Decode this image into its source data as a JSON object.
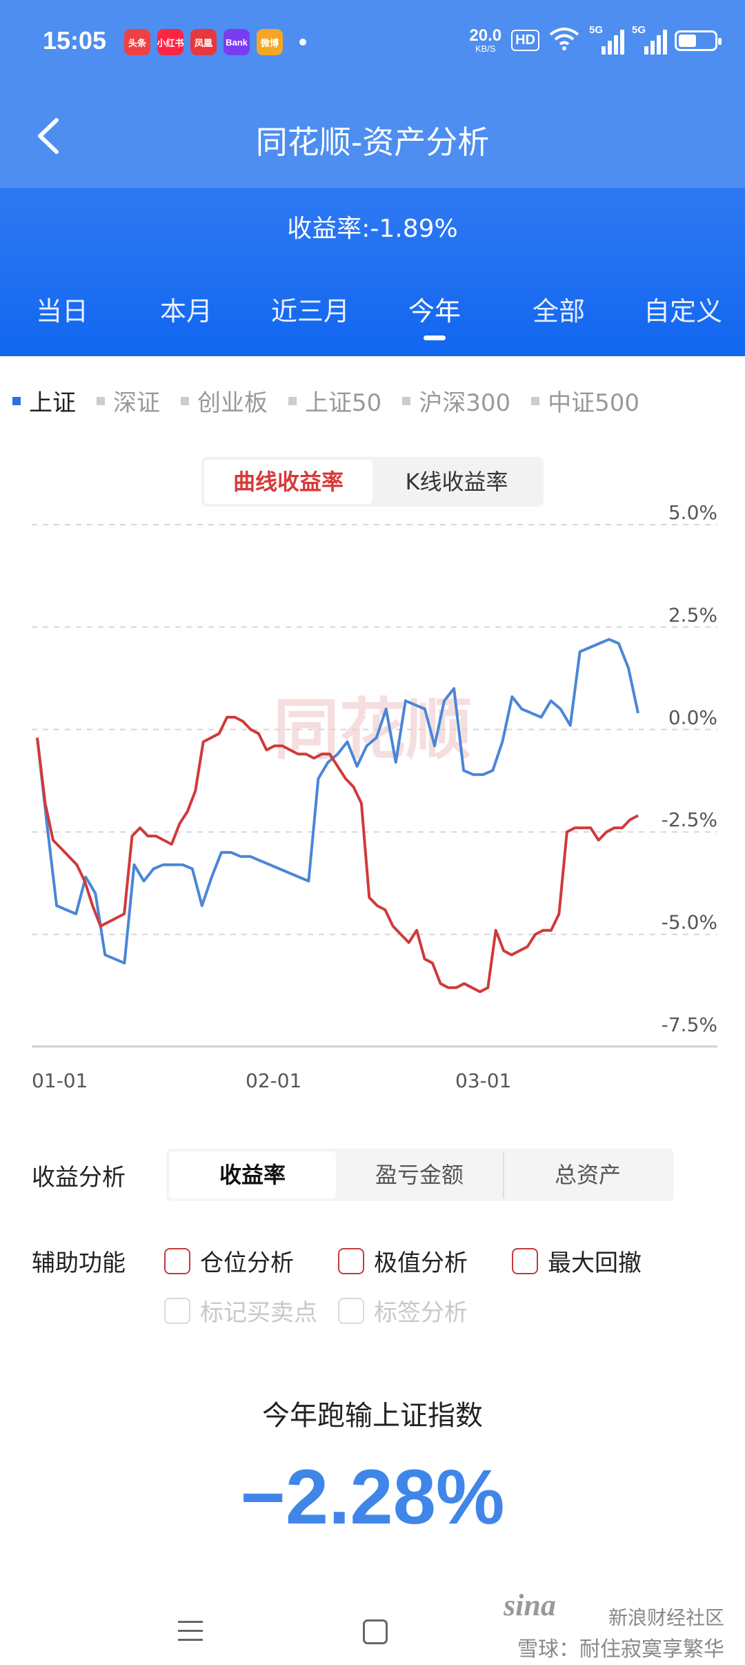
{
  "status": {
    "time": "15:05",
    "apps": [
      {
        "name": "toutiao-icon",
        "label": "头条",
        "color": "#f04142"
      },
      {
        "name": "xiaohongshu-icon",
        "label": "小红书",
        "color": "#ff2442"
      },
      {
        "name": "news-icon",
        "label": "凤凰",
        "color": "#e8383d"
      },
      {
        "name": "bank-icon",
        "label": "Bank",
        "color": "#7a3cf0"
      },
      {
        "name": "weibo-icon",
        "label": "微博",
        "color": "#f6a623"
      }
    ],
    "net_speed": "20.0",
    "net_unit": "KB/S",
    "hd": "HD",
    "sig1": "5G",
    "sig2": "5G"
  },
  "header": {
    "title": "同花顺-资产分析",
    "return_rate": "收益率:-1.89%"
  },
  "tabs": [
    "当日",
    "本月",
    "近三月",
    "今年",
    "全部",
    "自定义"
  ],
  "active_tab": 3,
  "indices": [
    "上证",
    "深证",
    "创业板",
    "上证50",
    "沪深300",
    "中证500"
  ],
  "active_index": 0,
  "chart_toggle": {
    "curve": "曲线收益率",
    "kline": "K线收益率"
  },
  "chart_data": {
    "type": "line",
    "x_tick_labels": [
      "01-01",
      "02-01",
      "03-01"
    ],
    "y_tick_labels": [
      "5.0%",
      "2.5%",
      "0.0%",
      "-2.5%",
      "-5.0%",
      "-7.5%"
    ],
    "ylim": [
      -7.5,
      5.0
    ],
    "grid": true,
    "watermark": "同花顺",
    "series": [
      {
        "color": "#4a86d8",
        "values": [
          -0.2,
          -2.3,
          -4.3,
          -4.4,
          -4.5,
          -3.6,
          -4.0,
          -5.5,
          -5.6,
          -5.7,
          -3.3,
          -3.7,
          -3.4,
          -3.3,
          -3.3,
          -3.3,
          -3.4,
          -4.3,
          -3.6,
          -3.0,
          -3.0,
          -3.1,
          -3.1,
          -3.2,
          -3.3,
          -3.4,
          -3.5,
          -3.6,
          -3.7,
          -1.2,
          -0.8,
          -0.6,
          -0.3,
          -0.9,
          -0.4,
          -0.2,
          0.5,
          -0.8,
          0.7,
          0.6,
          0.5,
          -0.4,
          0.7,
          1.0,
          -1.0,
          -1.1,
          -1.1,
          -1.0,
          -0.3,
          0.8,
          0.5,
          0.4,
          0.3,
          0.7,
          0.5,
          0.1,
          1.9,
          2.0,
          2.1,
          2.2,
          2.1,
          1.5,
          0.4
        ]
      },
      {
        "color": "#d03a3a",
        "values": [
          -0.2,
          -1.8,
          -2.7,
          -2.9,
          -3.1,
          -3.3,
          -3.7,
          -4.3,
          -4.8,
          -4.7,
          -4.6,
          -4.5,
          -2.6,
          -2.4,
          -2.6,
          -2.6,
          -2.7,
          -2.8,
          -2.3,
          -2.0,
          -1.5,
          -0.3,
          -0.2,
          -0.1,
          0.3,
          0.3,
          0.2,
          0.0,
          -0.1,
          -0.5,
          -0.4,
          -0.4,
          -0.5,
          -0.6,
          -0.6,
          -0.7,
          -0.6,
          -0.6,
          -0.9,
          -1.2,
          -1.4,
          -1.8,
          -4.1,
          -4.3,
          -4.4,
          -4.8,
          -5.0,
          -5.2,
          -4.9,
          -5.6,
          -5.7,
          -6.2,
          -6.3,
          -6.3,
          -6.2,
          -6.3,
          -6.4,
          -6.3,
          -4.9,
          -5.4,
          -5.5,
          -5.4,
          -5.3,
          -5.0,
          -4.9,
          -4.9,
          -4.5,
          -2.5,
          -2.4,
          -2.4,
          -2.4,
          -2.7,
          -2.5,
          -2.4,
          -2.4,
          -2.2,
          -2.1
        ]
      }
    ]
  },
  "analysis": {
    "label": "收益分析",
    "options": [
      "收益率",
      "盈亏金额",
      "总资产"
    ],
    "active": 0
  },
  "aux": {
    "label": "辅助功能",
    "position": "仓位分析",
    "extreme": "极值分析",
    "drawdown": "最大回撤",
    "mark_trades": "标记买卖点",
    "tag_analysis": "标签分析"
  },
  "summary": {
    "label": "今年跑输上证指数",
    "value": "−2.28%"
  },
  "watermark": {
    "sina": "sina",
    "line1": "新浪财经社区",
    "line2": "雪球：耐住寂寞享繁华"
  }
}
